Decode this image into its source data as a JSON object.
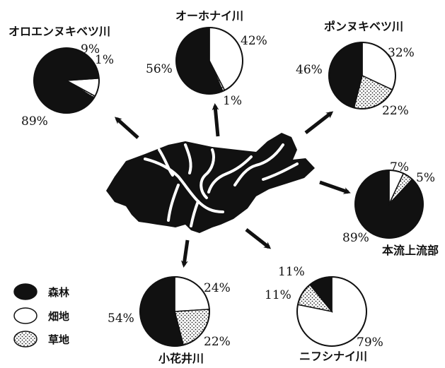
{
  "colors": {
    "forest": "#111111",
    "field": "#ffffff",
    "grass": "#dcdcdc",
    "outline": "#111111"
  },
  "legend": [
    {
      "key": "forest",
      "label": "森林",
      "swatch": "solid-black"
    },
    {
      "key": "field",
      "label": "畑地",
      "swatch": "white"
    },
    {
      "key": "grass",
      "label": "草地",
      "swatch": "dotted"
    }
  ],
  "chart_data": [
    {
      "type": "pie",
      "title": "オロエンヌキベツ川",
      "slices": [
        {
          "category": "forest",
          "value": 89,
          "label": "89%"
        },
        {
          "category": "field",
          "value": 9,
          "label": "9%"
        },
        {
          "category": "grass",
          "value": 1,
          "label": "1%"
        }
      ]
    },
    {
      "type": "pie",
      "title": "オーホナイ川",
      "slices": [
        {
          "category": "forest",
          "value": 56,
          "label": "56%"
        },
        {
          "category": "field",
          "value": 42,
          "label": "42%"
        },
        {
          "category": "grass",
          "value": 1,
          "label": "1%"
        }
      ]
    },
    {
      "type": "pie",
      "title": "ポンヌキベツ川",
      "slices": [
        {
          "category": "forest",
          "value": 46,
          "label": "46%"
        },
        {
          "category": "field",
          "value": 32,
          "label": "32%"
        },
        {
          "category": "grass",
          "value": 22,
          "label": "22%"
        }
      ]
    },
    {
      "type": "pie",
      "title": "本流上流部",
      "slices": [
        {
          "category": "forest",
          "value": 89,
          "label": "89%"
        },
        {
          "category": "field",
          "value": 7,
          "label": "7%"
        },
        {
          "category": "grass",
          "value": 5,
          "label": "5%"
        }
      ]
    },
    {
      "type": "pie",
      "title": "小花井川",
      "slices": [
        {
          "category": "forest",
          "value": 54,
          "label": "54%"
        },
        {
          "category": "field",
          "value": 24,
          "label": "24%"
        },
        {
          "category": "grass",
          "value": 22,
          "label": "22%"
        }
      ]
    },
    {
      "type": "pie",
      "title": "ニフシナイ川",
      "slices": [
        {
          "category": "forest",
          "value": 11,
          "label": "11%"
        },
        {
          "category": "field",
          "value": 79,
          "label": "79%"
        },
        {
          "category": "grass",
          "value": 11,
          "label": "11%"
        }
      ]
    }
  ]
}
